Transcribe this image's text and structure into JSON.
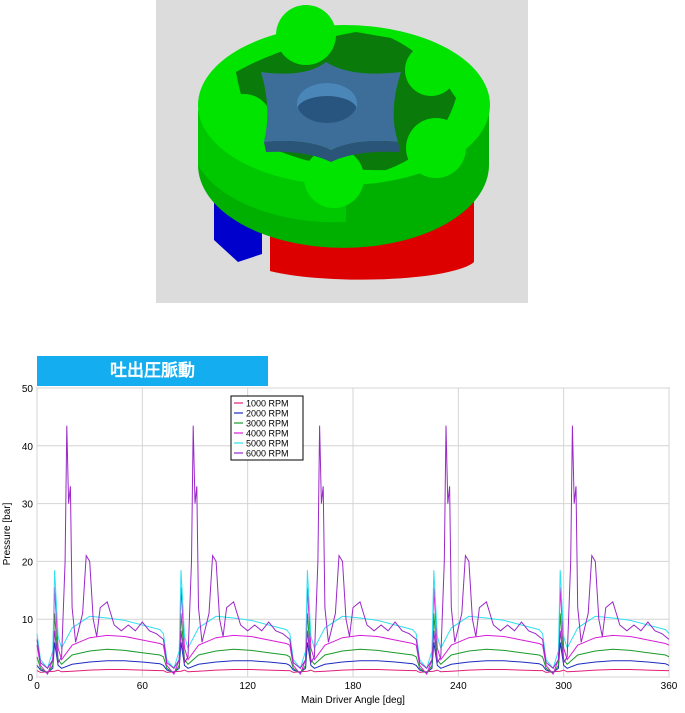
{
  "banner": {
    "title": "吐出圧脈動"
  },
  "render": {
    "colors": {
      "background": "#dcdcdc",
      "outer_rotor": "#00dc00",
      "inner_rotor": "#3d6e99",
      "bottom_ring": "#dd0000",
      "side_block": "#0000cc"
    }
  },
  "chart_data": {
    "type": "line",
    "title": "",
    "xlabel": "Main Driver Angle [deg]",
    "ylabel": "Pressure [bar]",
    "xlim": [
      0,
      360
    ],
    "ylim": [
      0,
      50
    ],
    "xticks": [
      0,
      60,
      120,
      180,
      240,
      300,
      360
    ],
    "yticks": [
      0,
      10,
      20,
      30,
      40,
      50
    ],
    "grid": true,
    "legend_position": "top-center",
    "period_deg": 72,
    "series": [
      {
        "name": "1000 RPM",
        "color": "#e0207a",
        "cycle_x": [
          0,
          2,
          6,
          10,
          12,
          14,
          20,
          30,
          40,
          50,
          60,
          70,
          72
        ],
        "cycle_y": [
          1.1,
          0.8,
          0.9,
          1.0,
          1.2,
          0.9,
          1.0,
          1.2,
          1.3,
          1.3,
          1.2,
          1.1,
          1.1
        ]
      },
      {
        "name": "2000 RPM",
        "color": "#1c2cc0",
        "cycle_x": [
          0,
          2,
          6,
          9,
          10,
          12,
          14,
          20,
          30,
          40,
          50,
          60,
          70,
          72
        ],
        "cycle_y": [
          2.0,
          1.2,
          0.8,
          1.5,
          6.0,
          2.0,
          1.5,
          2.2,
          2.6,
          2.8,
          2.8,
          2.6,
          2.3,
          2.0
        ]
      },
      {
        "name": "3000 RPM",
        "color": "#1a9a2a",
        "cycle_x": [
          0,
          2,
          6,
          9,
          10,
          12,
          14,
          20,
          30,
          40,
          50,
          60,
          70,
          72
        ],
        "cycle_y": [
          3.5,
          1.5,
          0.6,
          2.0,
          11.0,
          3.0,
          2.2,
          3.8,
          4.5,
          4.8,
          4.6,
          4.2,
          3.8,
          3.5
        ]
      },
      {
        "name": "4000 RPM",
        "color": "#d81ed8",
        "cycle_x": [
          0,
          2,
          6,
          9,
          10,
          12,
          14,
          20,
          30,
          40,
          50,
          60,
          70,
          72
        ],
        "cycle_y": [
          5.5,
          2.0,
          0.5,
          3.0,
          15.5,
          5.0,
          3.0,
          5.5,
          6.8,
          7.2,
          7.0,
          6.4,
          5.8,
          5.5
        ]
      },
      {
        "name": "5000 RPM",
        "color": "#30e0f0",
        "cycle_x": [
          0,
          2,
          6,
          9,
          10,
          12,
          14,
          20,
          30,
          40,
          50,
          60,
          70,
          72
        ],
        "cycle_y": [
          7.5,
          3.0,
          1.5,
          4.5,
          18.5,
          7.0,
          5.0,
          8.5,
          10.5,
          10.2,
          9.8,
          9.0,
          8.2,
          7.5
        ]
      },
      {
        "name": "6000 RPM",
        "color": "#9a28c8",
        "cycle_x": [
          0,
          2,
          6,
          9,
          10,
          12,
          14,
          16,
          17,
          18,
          19,
          20,
          22,
          26,
          28,
          30,
          32,
          34,
          36,
          40,
          44,
          48,
          52,
          56,
          60,
          64,
          68,
          72
        ],
        "cycle_y": [
          6.5,
          2.5,
          1.5,
          3.0,
          8.0,
          2.5,
          3.5,
          20.0,
          43.5,
          30.0,
          33.0,
          12.0,
          6.0,
          11.0,
          21.0,
          20.0,
          10.0,
          7.0,
          12.0,
          13.0,
          9.0,
          8.0,
          9.0,
          8.0,
          9.5,
          8.0,
          7.5,
          6.5
        ]
      }
    ]
  }
}
